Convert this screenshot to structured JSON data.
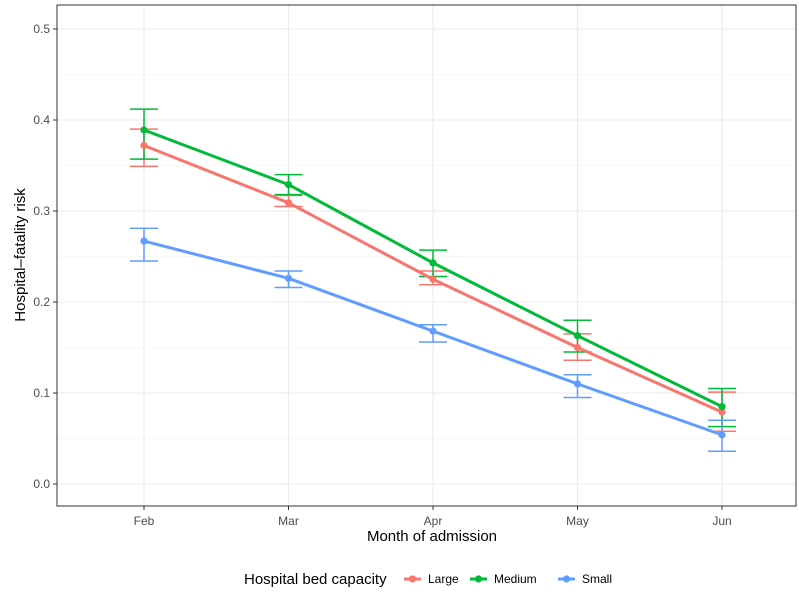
{
  "chart_data": {
    "type": "line",
    "xlabel": "Month of admission",
    "ylabel": "Hospital–fatality risk",
    "categories": [
      "Feb",
      "Mar",
      "Apr",
      "May",
      "Jun"
    ],
    "ylim": [
      -0.03,
      0.52
    ],
    "yticks": [
      0.0,
      0.1,
      0.2,
      0.3,
      0.4,
      0.5
    ],
    "ytick_labels": [
      "0.0",
      "0.1",
      "0.2",
      "0.3",
      "0.4",
      "0.5"
    ],
    "grid": true,
    "error_bars": true,
    "legend": {
      "title": "Hospital bed capacity",
      "position": "bottom"
    },
    "series": [
      {
        "name": "Large",
        "color": "#F8766D",
        "values": [
          0.372,
          0.309,
          0.225,
          0.15,
          0.079
        ],
        "lower": [
          0.349,
          0.305,
          0.219,
          0.136,
          0.058
        ],
        "upper": [
          0.39,
          0.317,
          0.234,
          0.165,
          0.101
        ]
      },
      {
        "name": "Medium",
        "color": "#00BA38",
        "values": [
          0.389,
          0.329,
          0.243,
          0.163,
          0.085
        ],
        "lower": [
          0.357,
          0.318,
          0.228,
          0.145,
          0.063
        ],
        "upper": [
          0.412,
          0.34,
          0.257,
          0.18,
          0.105
        ]
      },
      {
        "name": "Small",
        "color": "#619CFF",
        "values": [
          0.267,
          0.226,
          0.168,
          0.11,
          0.054
        ],
        "lower": [
          0.245,
          0.216,
          0.156,
          0.095,
          0.036
        ],
        "upper": [
          0.281,
          0.234,
          0.175,
          0.12,
          0.07
        ]
      }
    ]
  }
}
